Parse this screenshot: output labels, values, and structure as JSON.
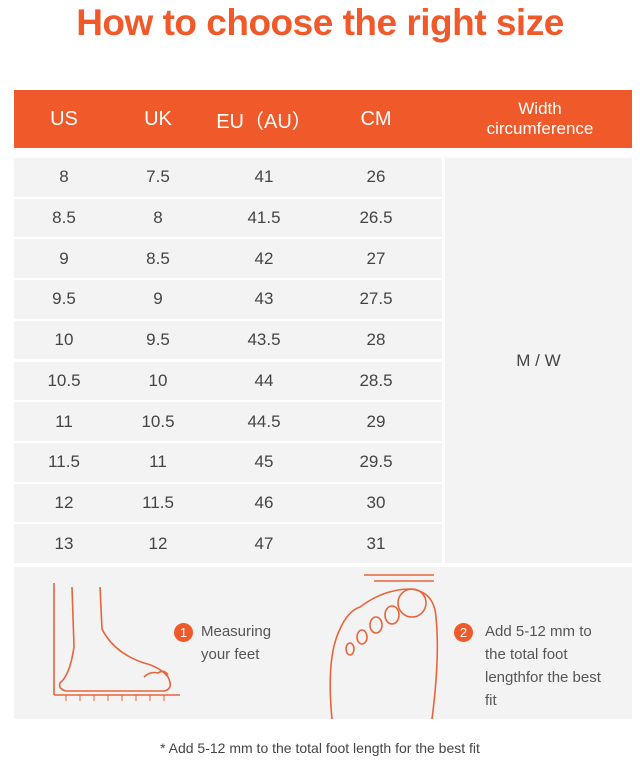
{
  "header": {
    "title": "How to choose the right size"
  },
  "table": {
    "columns": [
      "US",
      "UK",
      "EU（AU）",
      "CM",
      "Width circumference"
    ],
    "rows": [
      [
        "8",
        "7.5",
        "41",
        "26"
      ],
      [
        "8.5",
        "8",
        "41.5",
        "26.5"
      ],
      [
        "9",
        "8.5",
        "42",
        "27"
      ],
      [
        "9.5",
        "9",
        "43",
        "27.5"
      ],
      [
        "10",
        "9.5",
        "43.5",
        "28"
      ],
      [
        "10.5",
        "10",
        "44",
        "28.5"
      ],
      [
        "11",
        "10.5",
        "44.5",
        "29"
      ],
      [
        "11.5",
        "11",
        "45",
        "29.5"
      ],
      [
        "12",
        "11.5",
        "46",
        "30"
      ],
      [
        "13",
        "12",
        "47",
        "31"
      ]
    ],
    "width_value": "M / W"
  },
  "steps": [
    {
      "number": "1",
      "text": "Measuring your feet"
    },
    {
      "number": "2",
      "text": "Add 5-12 mm to the total foot lengthfor the best fit"
    }
  ],
  "note": "* Add 5-12 mm to the total foot length for the best fit"
}
